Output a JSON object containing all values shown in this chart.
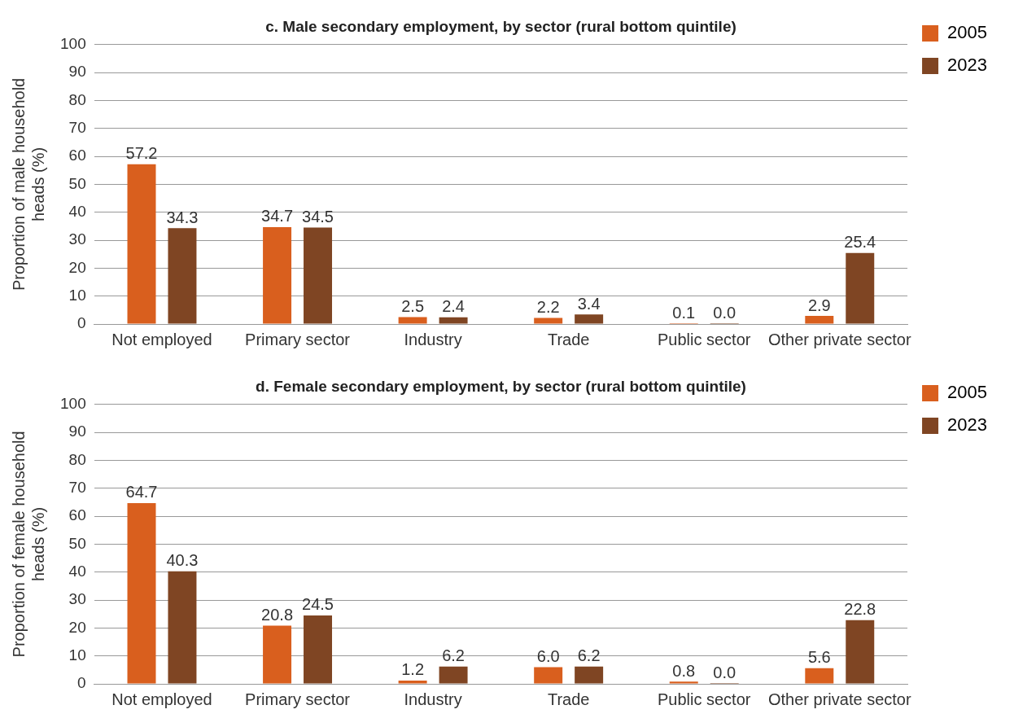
{
  "chart_data": [
    {
      "type": "bar",
      "title": "c. Male secondary employment, by sector (rural bottom quintile)",
      "ylabel": "Proportion of male household heads (%)",
      "categories": [
        "Not employed",
        "Primary sector",
        "Industry",
        "Trade",
        "Public sector",
        "Other private sector"
      ],
      "series": [
        {
          "name": "2005",
          "color": "#d95f1e",
          "values": [
            57.2,
            34.7,
            2.5,
            2.2,
            0.1,
            2.9
          ],
          "value_labels": [
            "57.2",
            "34.7",
            "2.5",
            "2.2",
            "0.1",
            "2.9"
          ]
        },
        {
          "name": "2023",
          "color": "#7f4523",
          "values": [
            34.3,
            34.5,
            2.4,
            3.4,
            0.0,
            25.4
          ],
          "value_labels": [
            "34.3",
            "34.5",
            "2.4",
            "3.4",
            "0.0",
            "25.4"
          ]
        }
      ],
      "ylim": [
        0,
        100
      ],
      "yticks": [
        0,
        10,
        20,
        30,
        40,
        50,
        60,
        70,
        80,
        90,
        100
      ],
      "grid": "y",
      "legend": "top right"
    },
    {
      "type": "bar",
      "title": "d. Female secondary employment, by sector (rural bottom quintile)",
      "ylabel": "Proportion of female household heads (%)",
      "categories": [
        "Not employed",
        "Primary sector",
        "Industry",
        "Trade",
        "Public sector",
        "Other private sector"
      ],
      "series": [
        {
          "name": "2005",
          "color": "#d95f1e",
          "values": [
            64.7,
            20.8,
            1.2,
            6.0,
            0.8,
            5.6
          ],
          "value_labels": [
            "64.7",
            "20.8",
            "1.2",
            "6.0",
            "0.8",
            "5.6"
          ]
        },
        {
          "name": "2023",
          "color": "#7f4523",
          "values": [
            40.3,
            24.5,
            6.2,
            6.2,
            0.0,
            22.8
          ],
          "value_labels": [
            "40.3",
            "24.5",
            "6.2",
            "6.2",
            "0.0",
            "22.8"
          ]
        }
      ],
      "ylim": [
        0,
        100
      ],
      "yticks": [
        0,
        10,
        20,
        30,
        40,
        50,
        60,
        70,
        80,
        90,
        100
      ],
      "grid": "y",
      "legend": "top right"
    }
  ]
}
